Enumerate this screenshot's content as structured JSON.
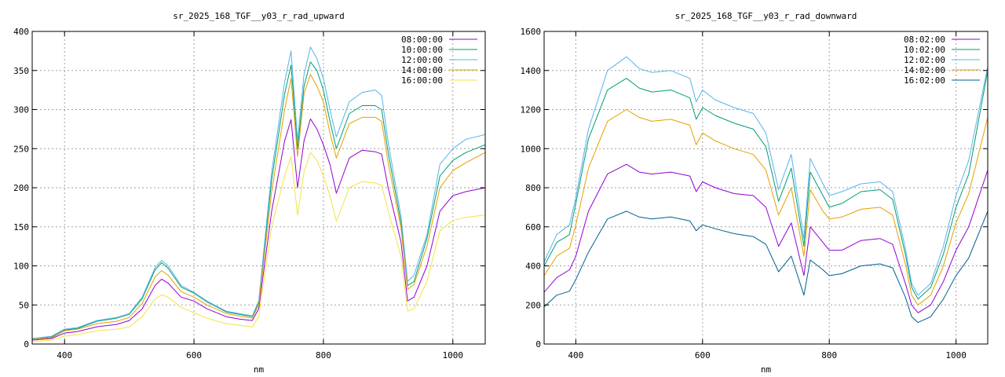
{
  "chart_data": [
    {
      "type": "line",
      "title": "sr_2025_168_TGF__y03_r_rad_upward",
      "xlabel": "nm",
      "ylabel": "",
      "xlim": [
        350,
        1050
      ],
      "ylim": [
        0,
        400
      ],
      "xticks": [
        400,
        600,
        800,
        1000
      ],
      "yticks": [
        0,
        50,
        100,
        150,
        200,
        250,
        300,
        350,
        400
      ],
      "grid": true,
      "legend_position": "top-right",
      "x": [
        350,
        380,
        400,
        420,
        450,
        480,
        500,
        520,
        540,
        550,
        560,
        580,
        600,
        620,
        650,
        670,
        690,
        700,
        720,
        740,
        750,
        760,
        770,
        780,
        790,
        800,
        810,
        820,
        840,
        860,
        880,
        890,
        900,
        920,
        930,
        940,
        960,
        980,
        1000,
        1020,
        1050
      ],
      "series": [
        {
          "name": "08:00:00",
          "color": "#9400d3",
          "values": [
            5,
            7,
            14,
            16,
            22,
            25,
            30,
            45,
            75,
            83,
            78,
            60,
            55,
            45,
            35,
            32,
            30,
            45,
            170,
            260,
            287,
            200,
            260,
            288,
            275,
            255,
            230,
            193,
            238,
            248,
            246,
            243,
            200,
            130,
            55,
            60,
            100,
            170,
            190,
            195,
            200
          ]
        },
        {
          "name": "10:00:00",
          "color": "#009e73",
          "values": [
            7,
            9,
            18,
            20,
            29,
            33,
            38,
            58,
            95,
            104,
            97,
            73,
            65,
            54,
            41,
            38,
            35,
            53,
            210,
            320,
            357,
            250,
            330,
            361,
            350,
            325,
            285,
            250,
            295,
            305,
            305,
            300,
            245,
            155,
            75,
            80,
            135,
            215,
            235,
            245,
            255
          ]
        },
        {
          "name": "12:00:00",
          "color": "#56b4e9",
          "values": [
            7,
            10,
            19,
            21,
            30,
            34,
            39,
            60,
            98,
            107,
            100,
            75,
            66,
            55,
            42,
            39,
            36,
            55,
            220,
            335,
            375,
            260,
            345,
            380,
            365,
            340,
            300,
            265,
            310,
            322,
            325,
            318,
            258,
            163,
            80,
            88,
            140,
            230,
            250,
            262,
            268
          ]
        },
        {
          "name": "14:00:00",
          "color": "#e69f00",
          "values": [
            6,
            8,
            17,
            19,
            26,
            29,
            34,
            52,
            86,
            94,
            88,
            67,
            60,
            50,
            39,
            36,
            33,
            50,
            195,
            300,
            340,
            240,
            320,
            345,
            330,
            310,
            270,
            238,
            282,
            290,
            290,
            285,
            232,
            148,
            70,
            76,
            125,
            200,
            222,
            232,
            245
          ]
        },
        {
          "name": "16:00:00",
          "color": "#f0e442",
          "values": [
            3,
            5,
            10,
            12,
            17,
            19,
            22,
            35,
            58,
            63,
            60,
            47,
            40,
            33,
            26,
            24,
            22,
            35,
            150,
            215,
            240,
            165,
            220,
            245,
            235,
            215,
            190,
            157,
            200,
            208,
            206,
            203,
            170,
            112,
            42,
            45,
            80,
            145,
            158,
            162,
            165
          ]
        }
      ]
    },
    {
      "type": "line",
      "title": "sr_2025_168_TGF__y03_r_rad_downward",
      "xlabel": "nm",
      "ylabel": "",
      "xlim": [
        350,
        1050
      ],
      "ylim": [
        0,
        1600
      ],
      "xticks": [
        400,
        600,
        800,
        1000
      ],
      "yticks": [
        0,
        200,
        400,
        600,
        800,
        1000,
        1200,
        1400,
        1600
      ],
      "grid": true,
      "legend_position": "top-right",
      "x": [
        350,
        370,
        390,
        400,
        420,
        450,
        480,
        500,
        520,
        550,
        580,
        590,
        600,
        620,
        650,
        680,
        700,
        720,
        740,
        760,
        770,
        790,
        800,
        820,
        850,
        880,
        900,
        920,
        930,
        940,
        960,
        980,
        1000,
        1020,
        1050
      ],
      "series": [
        {
          "name": "08:02:00",
          "color": "#9400d3",
          "values": [
            265,
            340,
            380,
            450,
            680,
            870,
            920,
            880,
            870,
            880,
            860,
            780,
            830,
            800,
            770,
            760,
            700,
            500,
            620,
            350,
            600,
            520,
            480,
            480,
            530,
            540,
            510,
            310,
            200,
            160,
            200,
            320,
            480,
            600,
            890
          ]
        },
        {
          "name": "10:02:00",
          "color": "#009e73",
          "values": [
            400,
            520,
            560,
            720,
            1050,
            1300,
            1360,
            1310,
            1290,
            1300,
            1260,
            1150,
            1210,
            1170,
            1130,
            1100,
            1010,
            730,
            900,
            500,
            880,
            760,
            700,
            720,
            780,
            790,
            740,
            460,
            290,
            230,
            290,
            460,
            700,
            870,
            1400
          ]
        },
        {
          "name": "12:02:00",
          "color": "#56b4e9",
          "values": [
            420,
            560,
            610,
            750,
            1100,
            1400,
            1470,
            1410,
            1390,
            1400,
            1360,
            1240,
            1300,
            1250,
            1210,
            1180,
            1080,
            790,
            970,
            540,
            950,
            820,
            760,
            780,
            820,
            830,
            780,
            490,
            310,
            250,
            310,
            500,
            760,
            940,
            1420
          ]
        },
        {
          "name": "14:02:00",
          "color": "#e69f00",
          "values": [
            350,
            450,
            490,
            610,
            900,
            1140,
            1200,
            1160,
            1140,
            1150,
            1120,
            1020,
            1080,
            1040,
            1000,
            970,
            890,
            660,
            800,
            450,
            790,
            680,
            640,
            650,
            690,
            700,
            660,
            410,
            250,
            200,
            250,
            400,
            620,
            770,
            1160
          ]
        },
        {
          "name": "16:02:00",
          "color": "#005f8f",
          "values": [
            190,
            250,
            270,
            330,
            470,
            640,
            680,
            650,
            640,
            650,
            630,
            580,
            610,
            590,
            565,
            550,
            510,
            370,
            450,
            250,
            430,
            380,
            350,
            360,
            400,
            410,
            390,
            240,
            140,
            110,
            140,
            230,
            350,
            440,
            680
          ]
        }
      ]
    }
  ]
}
